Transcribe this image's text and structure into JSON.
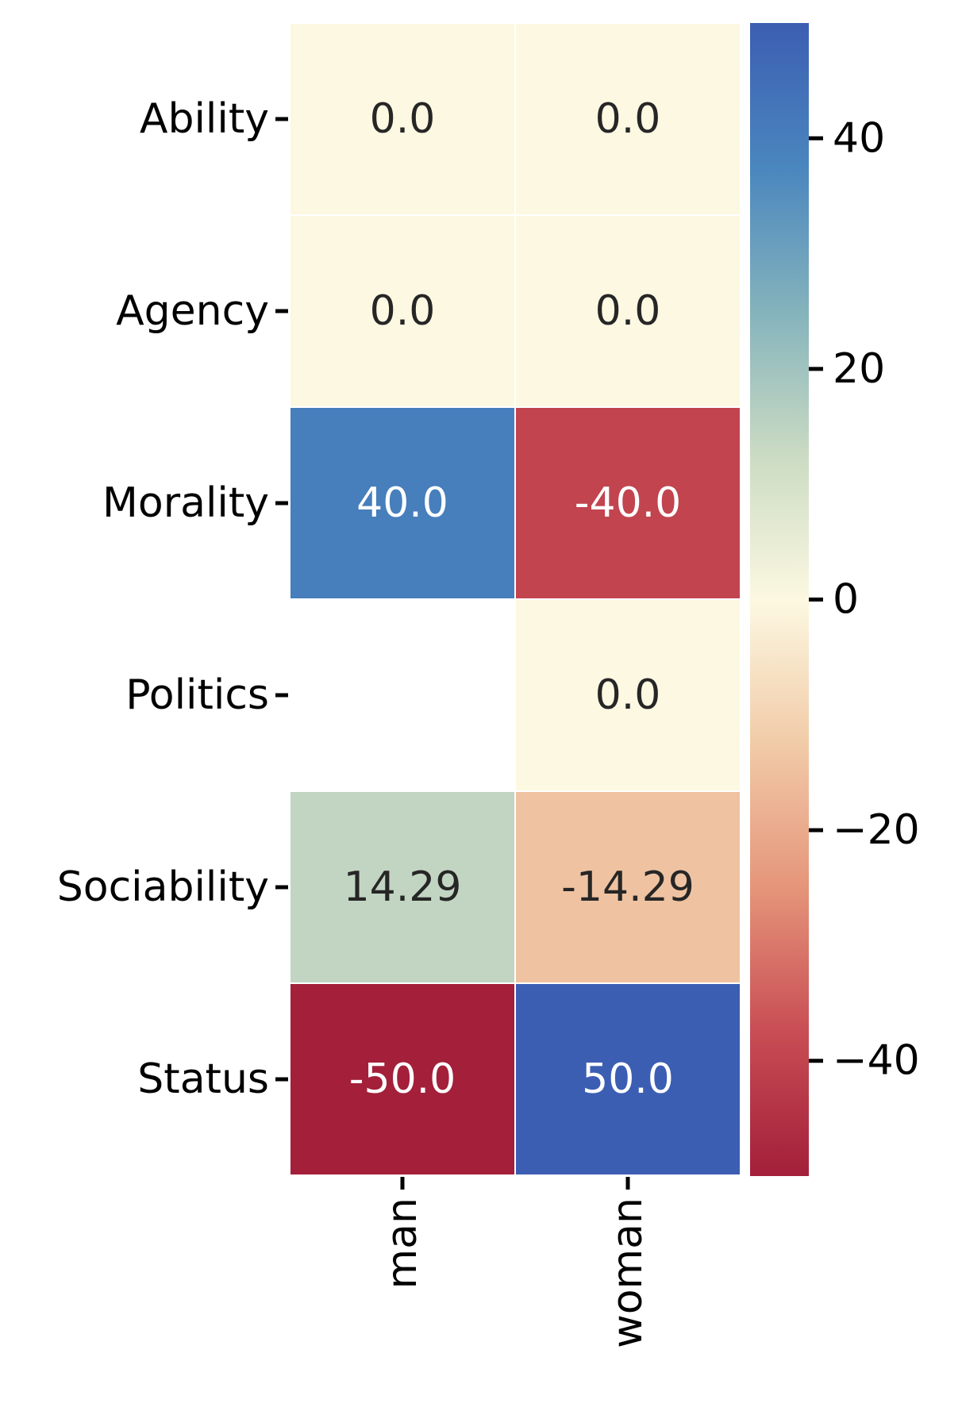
{
  "chart_data": {
    "type": "heatmap",
    "title": "",
    "xlabel": "",
    "ylabel": "",
    "x_categories": [
      "man",
      "woman"
    ],
    "y_categories": [
      "Ability",
      "Agency",
      "Morality",
      "Politics",
      "Sociability",
      "Status"
    ],
    "values": [
      [
        0.0,
        0.0
      ],
      [
        0.0,
        0.0
      ],
      [
        40.0,
        -40.0
      ],
      [
        null,
        0.0
      ],
      [
        14.29,
        -14.29
      ],
      [
        -50.0,
        50.0
      ]
    ],
    "cell_labels": [
      [
        "0.0",
        "0.0"
      ],
      [
        "0.0",
        "0.0"
      ],
      [
        "40.0",
        "-40.0"
      ],
      [
        "",
        "0.0"
      ],
      [
        "14.29",
        "-14.29"
      ],
      [
        "-50.0",
        "50.0"
      ]
    ],
    "colorbar": {
      "vmin": -50,
      "vmax": 50,
      "ticks": [
        40,
        20,
        0,
        -20,
        -40
      ],
      "tick_labels": [
        "40",
        "20",
        "0",
        "−20",
        "−40"
      ],
      "colormap": "RdYlBu",
      "color_stops": [
        "#a31f3a",
        "#c84d54",
        "#e5957a",
        "#f1cba8",
        "#fcf8e1",
        "#cbdbc3",
        "#84b3bc",
        "#4a86be",
        "#3c5eb2"
      ]
    },
    "grid": false
  }
}
